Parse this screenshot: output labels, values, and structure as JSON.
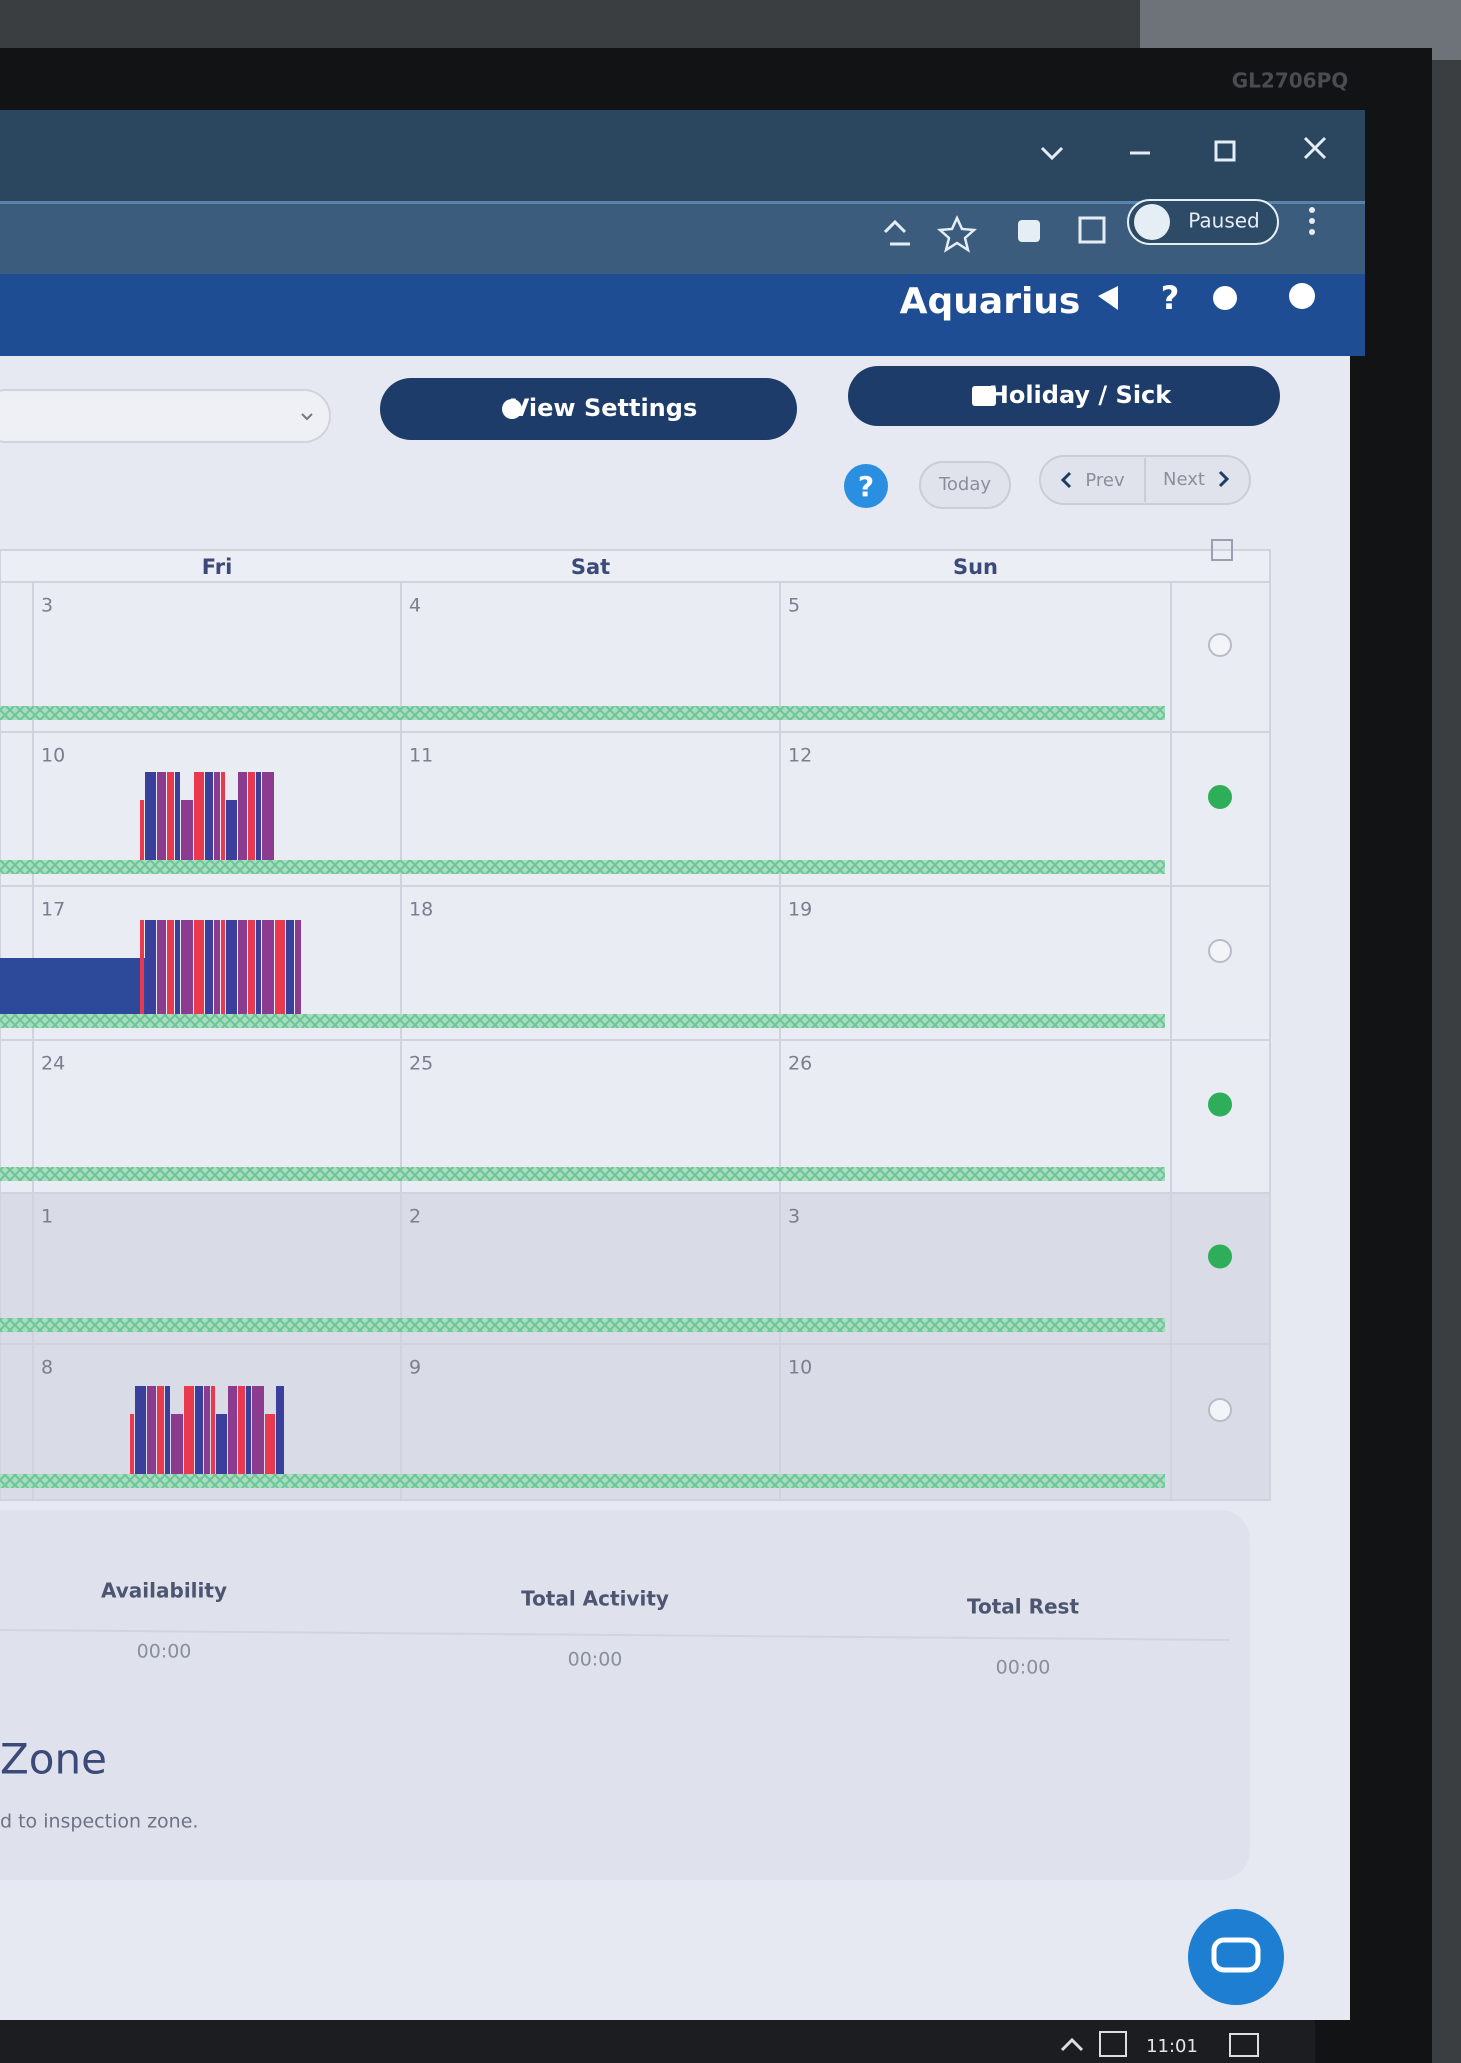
{
  "monitor_label": "GL2706PQ",
  "browser": {
    "profile": "Paused"
  },
  "app": {
    "brand": "Aquarius"
  },
  "toolbar": {
    "view_settings": "View Settings",
    "holiday": "Holiday / Sick",
    "today": "Today",
    "prev": "Prev",
    "next": "Next"
  },
  "calendar": {
    "days": [
      "Fri",
      "Sat",
      "Sun"
    ],
    "weeks": [
      [
        3,
        4,
        5
      ],
      [
        10,
        11,
        12
      ],
      [
        17,
        18,
        19
      ],
      [
        24,
        25,
        26
      ],
      [
        1,
        2,
        3
      ],
      [
        8,
        9,
        10
      ]
    ]
  },
  "summary": {
    "items": [
      {
        "label": "Availability",
        "value": "00:00"
      },
      {
        "label": "Total Activity",
        "value": "00:00"
      },
      {
        "label": "Total Rest",
        "value": "00:00"
      }
    ]
  },
  "section": {
    "title": "Zone",
    "text": "d to inspection zone."
  },
  "taskbar": {
    "time": "11:01"
  }
}
